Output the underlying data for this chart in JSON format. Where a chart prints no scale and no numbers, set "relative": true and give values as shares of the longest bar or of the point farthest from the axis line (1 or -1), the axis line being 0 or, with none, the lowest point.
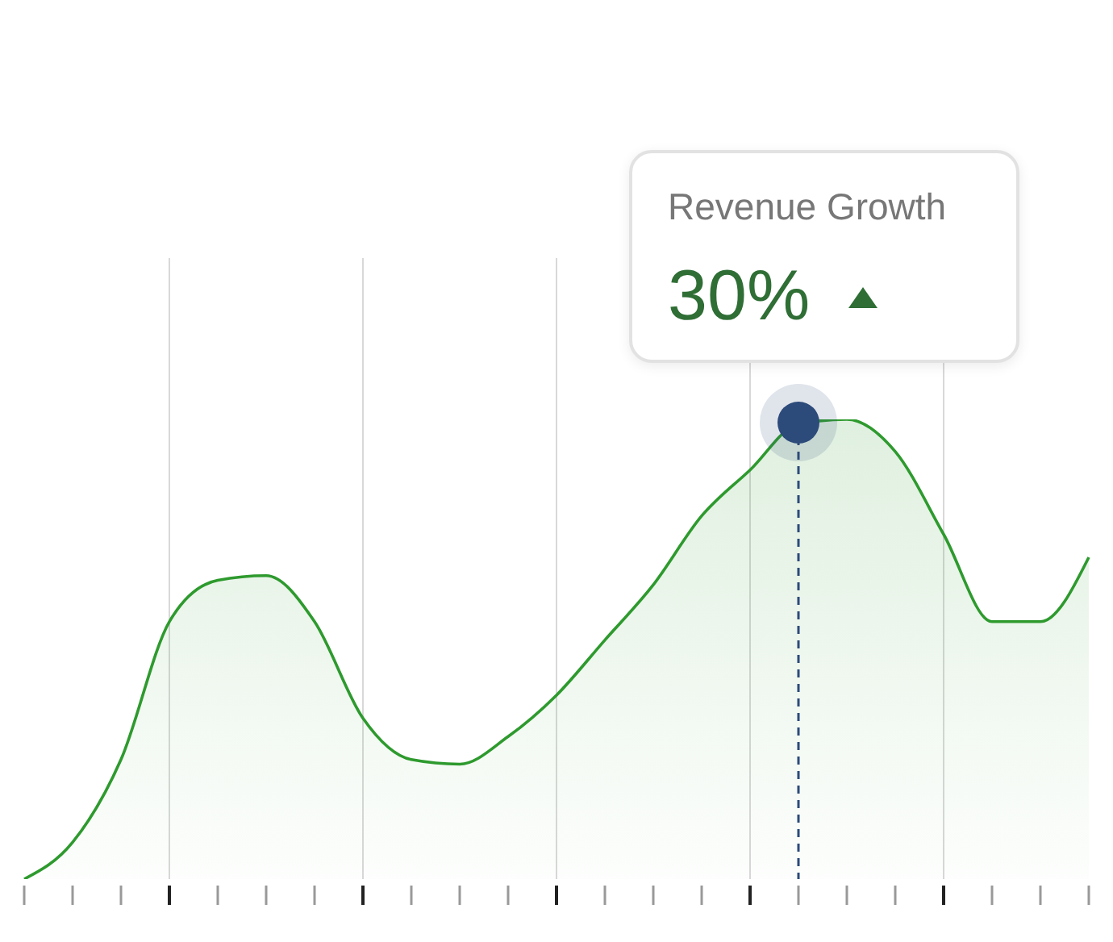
{
  "chart_data": {
    "type": "area",
    "relative": true,
    "categories": [
      null,
      null,
      null,
      null,
      null,
      null,
      null,
      null,
      null,
      null,
      null,
      null,
      null,
      null,
      null,
      null,
      null,
      null,
      null,
      null,
      null,
      null,
      null
    ],
    "series": [
      {
        "color": "#2e9a2e",
        "values": [
          0,
          0.08,
          0.26,
          0.56,
          0.65,
          0.66,
          0.56,
          0.35,
          0.26,
          0.25,
          0.31,
          0.4,
          0.52,
          0.64,
          0.79,
          0.89,
          0.99,
          1,
          0.93,
          0.75,
          0.56,
          0.56,
          0.7
        ]
      }
    ],
    "grid": "x",
    "marker": "none",
    "annotations": [
      "Revenue Growth",
      "30%"
    ]
  }
}
